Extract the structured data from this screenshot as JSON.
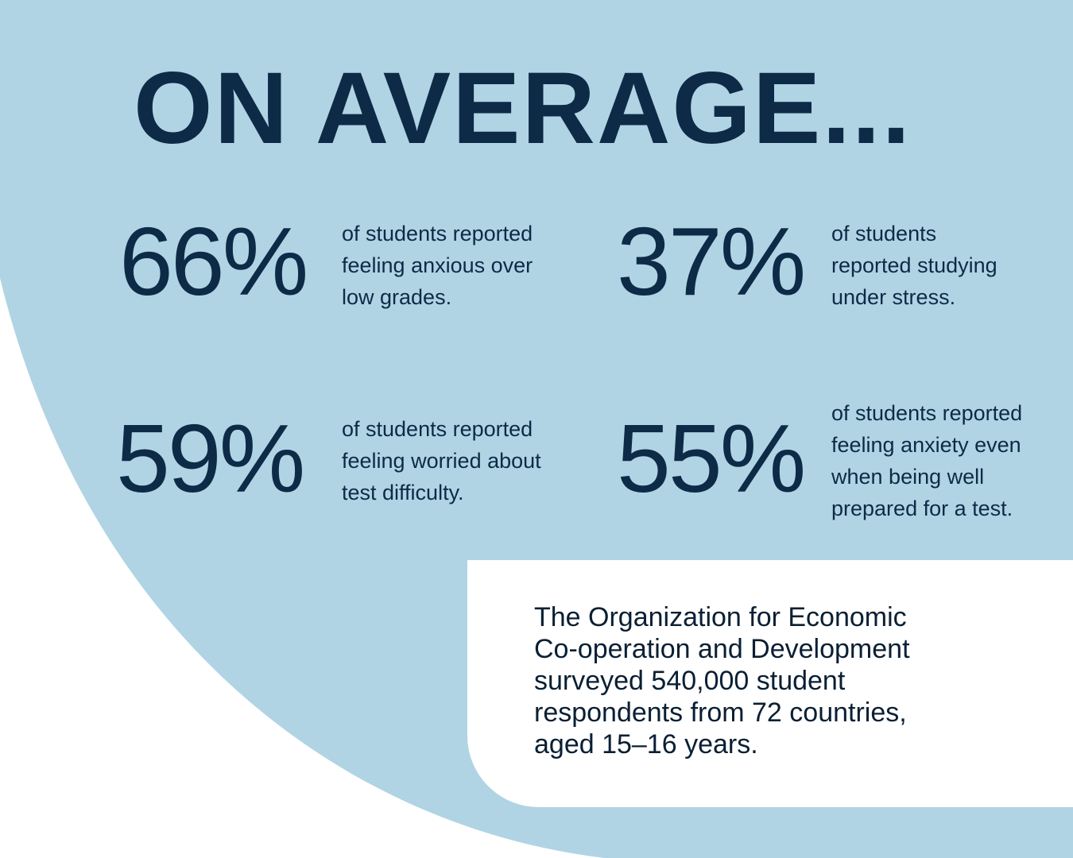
{
  "colors": {
    "background_circle": "#b0d4e4",
    "text_dark_navy": "#0d2a47",
    "card_white": "#ffffff"
  },
  "headline": "ON AVERAGE...",
  "stats": [
    {
      "value": "66%",
      "description_lines": [
        "of students reported",
        "feeling anxious over",
        "low grades."
      ]
    },
    {
      "value": "37%",
      "description_lines": [
        "of students",
        "reported studying",
        "under stress."
      ]
    },
    {
      "value": "59%",
      "description_lines": [
        "of students reported",
        "feeling worried about",
        "test difficulty."
      ]
    },
    {
      "value": "55%",
      "description_lines": [
        "of students reported",
        "feeling anxiety even",
        "when being well",
        "prepared for a test."
      ]
    }
  ],
  "survey_note": {
    "lines": [
      "The Organization for Economic",
      "Co-operation and Development",
      "surveyed 540,000 student",
      "respondents from 72 countries,",
      "aged 15–16 years."
    ]
  }
}
